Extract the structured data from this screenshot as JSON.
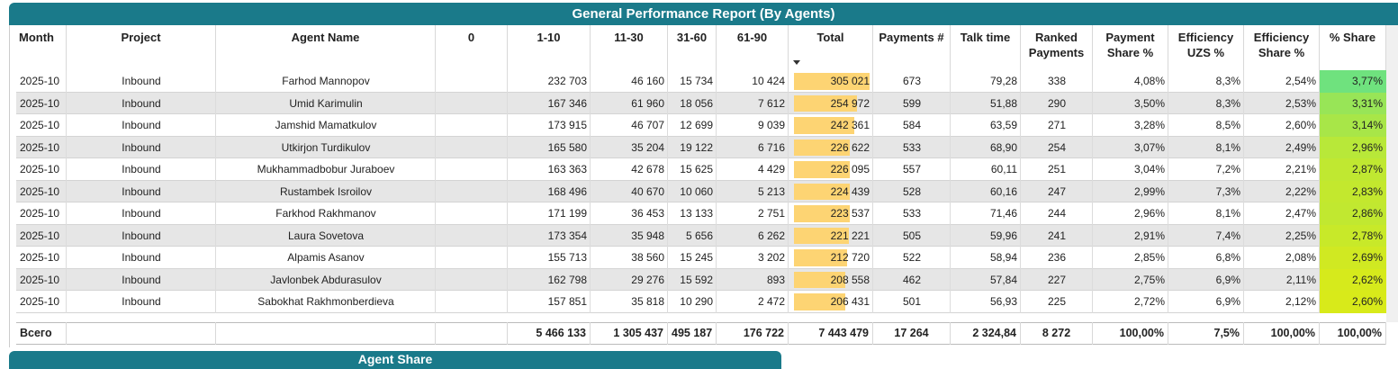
{
  "header": {
    "title": "General Performance Report (By Agents)"
  },
  "table": {
    "columns": [
      "Month",
      "Project",
      "Agent Name",
      "0",
      "1-10",
      "11-30",
      "31-60",
      "61-90",
      "Total",
      "Payments #",
      "Talk time",
      "Ranked Payments",
      "Payment Share %",
      "Efficiency UZS %",
      "Efficiency Share %",
      "% Share"
    ],
    "rows": [
      [
        "2025-10",
        "Inbound",
        "Farhod Mannopov",
        null,
        "232 703",
        "46 160",
        "15 734",
        "10 424",
        "305 021",
        "673",
        "79,28",
        "338",
        "4,08%",
        "8,3%",
        "2,54%",
        "3,77%"
      ],
      [
        "2025-10",
        "Inbound",
        "Umid Karimulin",
        null,
        "167 346",
        "61 960",
        "18 056",
        "7 612",
        "254 972",
        "599",
        "51,88",
        "290",
        "3,50%",
        "8,3%",
        "2,53%",
        "3,31%"
      ],
      [
        "2025-10",
        "Inbound",
        "Jamshid Mamatkulov",
        null,
        "173 915",
        "46 707",
        "12 699",
        "9 039",
        "242 361",
        "584",
        "63,59",
        "271",
        "3,28%",
        "8,5%",
        "2,60%",
        "3,14%"
      ],
      [
        "2025-10",
        "Inbound",
        "Utkirjon Turdikulov",
        null,
        "165 580",
        "35 204",
        "19 122",
        "6 716",
        "226 622",
        "533",
        "68,90",
        "254",
        "3,07%",
        "8,1%",
        "2,49%",
        "2,96%"
      ],
      [
        "2025-10",
        "Inbound",
        "Mukhammadbobur Juraboev",
        null,
        "163 363",
        "42 678",
        "15 625",
        "4 429",
        "226 095",
        "557",
        "60,11",
        "251",
        "3,04%",
        "7,2%",
        "2,21%",
        "2,87%"
      ],
      [
        "2025-10",
        "Inbound",
        "Rustambek Isroilov",
        null,
        "168 496",
        "40 670",
        "10 060",
        "5 213",
        "224 439",
        "528",
        "60,16",
        "247",
        "2,99%",
        "7,3%",
        "2,22%",
        "2,83%"
      ],
      [
        "2025-10",
        "Inbound",
        "Farkhod Rakhmanov",
        null,
        "171 199",
        "36 453",
        "13 133",
        "2 751",
        "223 537",
        "533",
        "71,46",
        "244",
        "2,96%",
        "8,1%",
        "2,47%",
        "2,86%"
      ],
      [
        "2025-10",
        "Inbound",
        "Laura Sovetova",
        null,
        "173 354",
        "35 948",
        "5 656",
        "6 262",
        "221 221",
        "505",
        "59,96",
        "241",
        "2,91%",
        "7,4%",
        "2,25%",
        "2,78%"
      ],
      [
        "2025-10",
        "Inbound",
        "Alpamis Asanov",
        null,
        "155 713",
        "38 560",
        "15 245",
        "3 202",
        "212 720",
        "522",
        "58,94",
        "236",
        "2,85%",
        "6,8%",
        "2,08%",
        "2,69%"
      ],
      [
        "2025-10",
        "Inbound",
        "Javlonbek Abdurasulov",
        null,
        "162 798",
        "29 276",
        "15 592",
        "893",
        "208 558",
        "462",
        "57,84",
        "227",
        "2,75%",
        "6,9%",
        "2,11%",
        "2,62%"
      ],
      [
        "2025-10",
        "Inbound",
        "Sabokhat Rakhmonberdieva",
        null,
        "157 851",
        "35 818",
        "10 290",
        "2 472",
        "206 431",
        "501",
        "56,93",
        "225",
        "2,72%",
        "6,9%",
        "2,12%",
        "2,60%"
      ]
    ],
    "totals": [
      "Всего",
      null,
      null,
      null,
      "5 466 133",
      "1 305 437",
      "495 187",
      "176 722",
      "7 443 479",
      "17 264",
      "2 324,84",
      "8 272",
      "100,00%",
      "7,5%",
      "100,00%",
      "100,00%"
    ]
  },
  "footer": {
    "title": "Agent Share"
  }
}
